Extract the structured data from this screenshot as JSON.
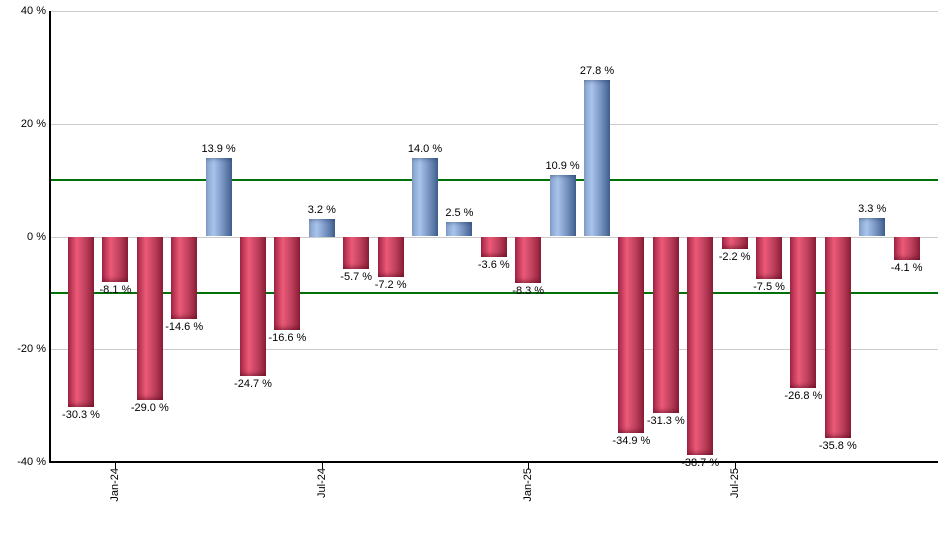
{
  "chart_data": {
    "type": "bar",
    "title": "",
    "description": "Monthly percent returns bar chart, positive months blue, negative months red",
    "ylim": [
      -40,
      40
    ],
    "grid": true,
    "legend": "none",
    "yticks": [
      {
        "value": 40,
        "label": "40 %"
      },
      {
        "value": 20,
        "label": "20 %"
      },
      {
        "value": 0,
        "label": "0 %"
      },
      {
        "value": -20,
        "label": "-20 %"
      },
      {
        "value": -40,
        "label": "-40 %"
      }
    ],
    "gridline_values": [
      40,
      20,
      0,
      -20
    ],
    "reference_lines": [
      {
        "value": 10
      },
      {
        "value": -10
      }
    ],
    "x_ticks": [
      {
        "bar_index": 1,
        "label": "Jan-24"
      },
      {
        "bar_index": 7,
        "label": "Jul-24"
      },
      {
        "bar_index": 13,
        "label": "Jan-25"
      },
      {
        "bar_index": 19,
        "label": "Jul-25"
      }
    ],
    "bars": [
      {
        "value": -30.3,
        "label": "-30.3 %"
      },
      {
        "value": -8.1,
        "label": "-8.1 %"
      },
      {
        "value": -29.0,
        "label": "-29.0 %"
      },
      {
        "value": -14.6,
        "label": "-14.6 %"
      },
      {
        "value": 13.9,
        "label": "13.9 %"
      },
      {
        "value": -24.7,
        "label": "-24.7 %"
      },
      {
        "value": -16.6,
        "label": "-16.6 %"
      },
      {
        "value": 3.2,
        "label": "3.2 %"
      },
      {
        "value": -5.7,
        "label": "-5.7 %"
      },
      {
        "value": -7.2,
        "label": "-7.2 %"
      },
      {
        "value": 14.0,
        "label": "14.0 %"
      },
      {
        "value": 2.5,
        "label": "2.5 %"
      },
      {
        "value": -3.6,
        "label": "-3.6 %"
      },
      {
        "value": -8.3,
        "label": "-8.3 %"
      },
      {
        "value": 10.9,
        "label": "10.9 %"
      },
      {
        "value": 27.8,
        "label": "27.8 %"
      },
      {
        "value": -34.9,
        "label": "-34.9 %"
      },
      {
        "value": -31.3,
        "label": "-31.3 %"
      },
      {
        "value": -38.7,
        "label": "-38.7 %"
      },
      {
        "value": -2.2,
        "label": "-2.2 %"
      },
      {
        "value": -7.5,
        "label": "-7.5 %"
      },
      {
        "value": -26.8,
        "label": "-26.8 %"
      },
      {
        "value": -35.8,
        "label": "-35.8 %"
      },
      {
        "value": 3.3,
        "label": "3.3 %"
      },
      {
        "value": -4.1,
        "label": "-4.1 %"
      }
    ],
    "colors": {
      "positive_stops": [
        "#85a0c9",
        "#a8c4ec",
        "#7b97c4",
        "#41608f"
      ],
      "negative_stops": [
        "#a32545",
        "#ec5a78",
        "#c24360",
        "#8c1e37"
      ],
      "reference_line": "#007008",
      "gridline": "#cccccc",
      "axis": "#000000",
      "label_text": "#000000",
      "background": "#ffffff"
    }
  }
}
